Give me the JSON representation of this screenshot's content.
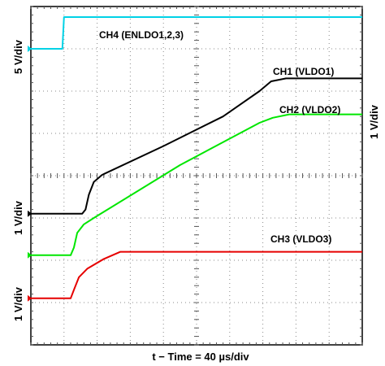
{
  "chart_data": {
    "type": "line",
    "title": "",
    "xlabel": "t − Time = 40 µs/div",
    "y_scale_labels": {
      "left_top": "5 V/div",
      "left_mid": "1 V/div",
      "left_bottom": "1 V/div",
      "right": "1 V/div"
    },
    "divisions": {
      "x": 10,
      "y": 8
    },
    "xlim": [
      0,
      10
    ],
    "ylim": [
      0,
      8
    ],
    "grid": true,
    "series": [
      {
        "name": "CH4 (ENLDO1,2,3)",
        "color": "#00d2e6",
        "points": [
          [
            0,
            7.0
          ],
          [
            0.95,
            7.0
          ],
          [
            1.0,
            7.75
          ],
          [
            10,
            7.75
          ]
        ]
      },
      {
        "name": "CH1 (VLDO1)",
        "color": "#000000",
        "points": [
          [
            0,
            3.1
          ],
          [
            1.55,
            3.1
          ],
          [
            1.65,
            3.2
          ],
          [
            1.75,
            3.55
          ],
          [
            1.9,
            3.85
          ],
          [
            2.15,
            4.02
          ],
          [
            4.0,
            4.7
          ],
          [
            5.8,
            5.4
          ],
          [
            6.9,
            6.0
          ],
          [
            7.25,
            6.23
          ],
          [
            7.7,
            6.3
          ],
          [
            10,
            6.3
          ]
        ]
      },
      {
        "name": "CH2 (VLDO2)",
        "color": "#00e600",
        "points": [
          [
            0,
            2.12
          ],
          [
            1.2,
            2.12
          ],
          [
            1.3,
            2.3
          ],
          [
            1.4,
            2.65
          ],
          [
            1.6,
            2.85
          ],
          [
            1.9,
            3.0
          ],
          [
            4.5,
            4.25
          ],
          [
            6.9,
            5.25
          ],
          [
            7.3,
            5.37
          ],
          [
            7.8,
            5.45
          ],
          [
            10,
            5.45
          ]
        ]
      },
      {
        "name": "CH3 (VLDO3)",
        "color": "#e60000",
        "points": [
          [
            0,
            1.1
          ],
          [
            1.2,
            1.1
          ],
          [
            1.3,
            1.3
          ],
          [
            1.45,
            1.6
          ],
          [
            1.7,
            1.8
          ],
          [
            2.2,
            2.03
          ],
          [
            2.7,
            2.2
          ],
          [
            10,
            2.2
          ]
        ]
      }
    ]
  }
}
